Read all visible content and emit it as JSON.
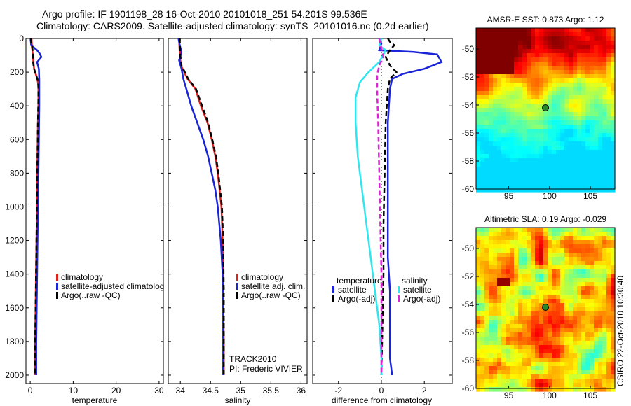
{
  "header": {
    "line1": "Argo profile: IF 1901198_28 16-Oct-2010 20101018_251 54.201S 99.536E",
    "line2": "Climatology: CARS2009. Satellite-adjusted climatology: synTS_20101016.nc (0.2d earlier)"
  },
  "side_label": "CSIRO 22-Oct-2010 10:30:40",
  "colors": {
    "climatology": "#e0201a",
    "satellite": "#1a24d8",
    "argo": "#000000",
    "temp_diff_satellite": "#2ee6f0",
    "temp_diff_argo": "#e020d8",
    "marker": "#2a8a2a"
  },
  "chart_data": [
    {
      "type": "line",
      "xlabel": "temperature",
      "ylabel": "",
      "xlim": [
        -1,
        31
      ],
      "ylim": [
        2050,
        0
      ],
      "xticks": [
        0,
        10,
        20,
        30
      ],
      "yticks": [
        0,
        200,
        400,
        600,
        800,
        1000,
        1200,
        1400,
        1600,
        1800,
        2000
      ],
      "y_reversed": true,
      "legend": [
        "climatology",
        "satellite-adjusted climatolog",
        "Argo(..raw -QC)"
      ],
      "series": [
        {
          "name": "climatology",
          "style": "solid",
          "color": "#e0201a",
          "points": [
            [
              0.3,
              0
            ],
            [
              0.4,
              50
            ],
            [
              0.6,
              100
            ],
            [
              0.9,
              180
            ],
            [
              1.4,
              220
            ],
            [
              1.8,
              260
            ],
            [
              1.9,
              300
            ],
            [
              1.9,
              400
            ],
            [
              1.8,
              500
            ],
            [
              1.7,
              700
            ],
            [
              1.6,
              900
            ],
            [
              1.5,
              1100
            ],
            [
              1.4,
              1300
            ],
            [
              1.3,
              1500
            ],
            [
              1.2,
              1700
            ],
            [
              1.1,
              1900
            ],
            [
              1.1,
              2000
            ]
          ]
        },
        {
          "name": "satellite-adjusted climatolog",
          "style": "solid",
          "color": "#1a24d8",
          "points": [
            [
              0.1,
              0
            ],
            [
              0.2,
              40
            ],
            [
              1.6,
              70
            ],
            [
              2.2,
              90
            ],
            [
              2.6,
              110
            ],
            [
              1.6,
              140
            ],
            [
              2.0,
              180
            ],
            [
              2.1,
              250
            ],
            [
              2.1,
              400
            ],
            [
              2.0,
              600
            ],
            [
              1.9,
              800
            ],
            [
              1.8,
              1000
            ],
            [
              1.7,
              1200
            ],
            [
              1.6,
              1400
            ],
            [
              1.5,
              1600
            ],
            [
              1.4,
              1800
            ],
            [
              1.4,
              2000
            ]
          ]
        },
        {
          "name": "Argo(..raw -QC)",
          "style": "dashed",
          "color": "#000000",
          "points": [
            [
              0.1,
              0
            ],
            [
              0.3,
              30
            ],
            [
              0.5,
              60
            ],
            [
              0.7,
              90
            ],
            [
              0.6,
              130
            ],
            [
              0.9,
              180
            ],
            [
              1.4,
              220
            ],
            [
              1.9,
              260
            ],
            [
              1.9,
              350
            ],
            [
              1.8,
              500
            ],
            [
              1.7,
              700
            ],
            [
              1.6,
              900
            ],
            [
              1.5,
              1100
            ],
            [
              1.4,
              1300
            ],
            [
              1.3,
              1500
            ],
            [
              1.2,
              1700
            ],
            [
              1.1,
              1900
            ],
            [
              1.1,
              2000
            ]
          ]
        }
      ]
    },
    {
      "type": "line",
      "xlabel": "salinity",
      "xlim": [
        33.8,
        36.1
      ],
      "ylim": [
        2050,
        0
      ],
      "xticks": [
        34,
        34.5,
        35,
        35.5,
        36
      ],
      "y_reversed": true,
      "legend": [
        "climatology",
        "satellite adj. clim.",
        "Argo(..raw -QC)"
      ],
      "annotation": [
        "TRACK2010",
        "PI: Frederic VIVIER"
      ],
      "series": [
        {
          "name": "climatology",
          "style": "solid",
          "color": "#e0201a",
          "points": [
            [
              33.98,
              0
            ],
            [
              33.99,
              100
            ],
            [
              34.01,
              160
            ],
            [
              34.12,
              240
            ],
            [
              34.25,
              300
            ],
            [
              34.34,
              400
            ],
            [
              34.45,
              500
            ],
            [
              34.52,
              600
            ],
            [
              34.58,
              700
            ],
            [
              34.62,
              800
            ],
            [
              34.65,
              900
            ],
            [
              34.68,
              1000
            ],
            [
              34.7,
              1200
            ],
            [
              34.71,
              1500
            ],
            [
              34.72,
              1800
            ],
            [
              34.72,
              2000
            ]
          ]
        },
        {
          "name": "satellite adj. clim.",
          "style": "solid",
          "color": "#1a24d8",
          "points": [
            [
              33.97,
              0
            ],
            [
              33.99,
              40
            ],
            [
              34.02,
              80
            ],
            [
              33.98,
              130
            ],
            [
              34.02,
              180
            ],
            [
              34.05,
              240
            ],
            [
              34.1,
              300
            ],
            [
              34.18,
              400
            ],
            [
              34.28,
              500
            ],
            [
              34.38,
              600
            ],
            [
              34.46,
              700
            ],
            [
              34.52,
              800
            ],
            [
              34.58,
              900
            ],
            [
              34.62,
              1000
            ],
            [
              34.67,
              1200
            ],
            [
              34.7,
              1400
            ],
            [
              34.71,
              1600
            ],
            [
              34.71,
              1800
            ],
            [
              34.71,
              2000
            ]
          ]
        },
        {
          "name": "Argo(..raw -QC)",
          "style": "dashed",
          "color": "#000000",
          "points": [
            [
              33.99,
              0
            ],
            [
              34.0,
              100
            ],
            [
              34.02,
              160
            ],
            [
              34.13,
              240
            ],
            [
              34.26,
              300
            ],
            [
              34.36,
              400
            ],
            [
              34.46,
              500
            ],
            [
              34.53,
              600
            ],
            [
              34.59,
              700
            ],
            [
              34.63,
              800
            ],
            [
              34.66,
              900
            ],
            [
              34.69,
              1000
            ],
            [
              34.71,
              1200
            ],
            [
              34.72,
              1500
            ],
            [
              34.72,
              1800
            ],
            [
              34.72,
              2000
            ]
          ]
        }
      ]
    },
    {
      "type": "line",
      "xlabel": "difference from climatology",
      "xlim": [
        -3.2,
        3.3
      ],
      "ylim": [
        2050,
        0
      ],
      "xticks": [
        -2,
        0,
        2
      ],
      "y_reversed": true,
      "legend_groups": [
        {
          "title": "temperature",
          "items": [
            "satellite",
            "Argo(-adj)"
          ]
        },
        {
          "title": "salinity",
          "items": [
            "satellite",
            "Argo(-adj)"
          ]
        }
      ],
      "series": [
        {
          "name": "temperature satellite",
          "style": "solid",
          "color": "#1a24d8",
          "points": [
            [
              -0.1,
              0
            ],
            [
              0.0,
              30
            ],
            [
              -0.1,
              70
            ],
            [
              1.5,
              80
            ],
            [
              2.6,
              95
            ],
            [
              2.8,
              140
            ],
            [
              2.0,
              180
            ],
            [
              1.0,
              210
            ],
            [
              0.5,
              240
            ],
            [
              0.4,
              300
            ],
            [
              0.3,
              500
            ],
            [
              0.3,
              800
            ],
            [
              0.3,
              1000
            ],
            [
              0.3,
              1200
            ],
            [
              0.3,
              1300
            ],
            [
              0.4,
              1500
            ],
            [
              0.4,
              1700
            ],
            [
              0.4,
              1900
            ],
            [
              0.5,
              2000
            ]
          ]
        },
        {
          "name": "temperature Argo(-adj)",
          "style": "dashed",
          "color": "#000000",
          "points": [
            [
              0.3,
              0
            ],
            [
              0.4,
              20
            ],
            [
              0.6,
              40
            ],
            [
              0.4,
              70
            ],
            [
              0.2,
              110
            ],
            [
              0.4,
              160
            ],
            [
              0.7,
              200
            ],
            [
              0.4,
              240
            ],
            [
              0.3,
              300
            ],
            [
              0.2,
              500
            ],
            [
              0.15,
              800
            ],
            [
              0.1,
              1100
            ],
            [
              0.1,
              1400
            ],
            [
              0.05,
              1700
            ],
            [
              0.0,
              2000
            ]
          ]
        },
        {
          "name": "salinity satellite",
          "style": "solid",
          "color": "#2ee6f0",
          "points": [
            [
              0.0,
              0
            ],
            [
              -0.1,
              40
            ],
            [
              0.2,
              70
            ],
            [
              -0.1,
              140
            ],
            [
              -0.6,
              200
            ],
            [
              -1.0,
              260
            ],
            [
              -1.2,
              350
            ],
            [
              -1.2,
              500
            ],
            [
              -1.1,
              700
            ],
            [
              -0.9,
              900
            ],
            [
              -0.7,
              1100
            ],
            [
              -0.5,
              1300
            ],
            [
              -0.3,
              1500
            ],
            [
              -0.1,
              1700
            ],
            [
              0.0,
              1900
            ],
            [
              0.0,
              2000
            ]
          ]
        },
        {
          "name": "salinity Argo(-adj)",
          "style": "dashed",
          "color": "#e020d8",
          "points": [
            [
              -0.1,
              0
            ],
            [
              0.0,
              60
            ],
            [
              0.1,
              110
            ],
            [
              -0.1,
              160
            ],
            [
              -0.2,
              220
            ],
            [
              -0.2,
              300
            ],
            [
              -0.15,
              500
            ],
            [
              -0.1,
              800
            ],
            [
              -0.05,
              1100
            ],
            [
              0.0,
              1400
            ],
            [
              0.0,
              1700
            ],
            [
              0.0,
              2000
            ]
          ]
        }
      ]
    },
    {
      "type": "heatmap",
      "title": "AMSR-E SST: 0.873 Argo: 1.12",
      "xlim": [
        91,
        108
      ],
      "ylim": [
        -60,
        -48.5
      ],
      "xticks": [
        95,
        100,
        105
      ],
      "yticks": [
        -50,
        -52,
        -54,
        -56,
        -58,
        -60
      ],
      "marker": {
        "lon": 99.5,
        "lat": -54.2
      }
    },
    {
      "type": "heatmap",
      "title": "Altimetric SLA: 0.19 Argo: -0.029",
      "xlim": [
        91,
        108
      ],
      "ylim": [
        -60,
        -48.5
      ],
      "xticks": [
        95,
        100,
        105
      ],
      "yticks": [
        -50,
        -52,
        -54,
        -56,
        -58,
        -60
      ],
      "marker": {
        "lon": 99.5,
        "lat": -54.2
      }
    }
  ]
}
